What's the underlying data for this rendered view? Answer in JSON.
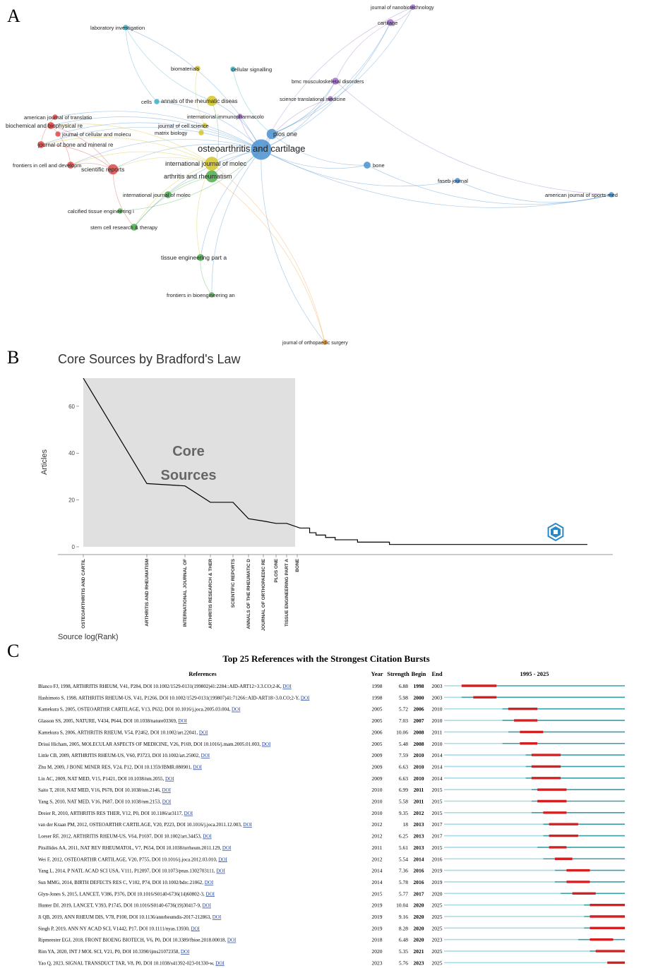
{
  "panel_labels": [
    "A",
    "B",
    "C"
  ],
  "chart_data": [
    {
      "type": "network",
      "panel": "A",
      "description": "Co-citation network of journals",
      "colors": {
        "red": "#e04848",
        "blue": "#4a90d0",
        "green": "#4cae4c",
        "yellow": "#d4c428",
        "purple": "#a070c8",
        "cyan": "#38b0c8",
        "orange": "#f0a040"
      },
      "nodes": [
        {
          "id": "osteoarthritis and cartilage",
          "cluster": "blue",
          "weight": 10
        },
        {
          "id": "international journal of molec",
          "cluster": "yellow",
          "weight": 6
        },
        {
          "id": "arthritis and rheumatism",
          "cluster": "green",
          "weight": 5
        },
        {
          "id": "plos one",
          "cluster": "blue",
          "weight": 4
        },
        {
          "id": "annals of the rheumatic diseas",
          "cluster": "yellow",
          "weight": 4
        },
        {
          "id": "scientific reports",
          "cluster": "red",
          "weight": 4
        },
        {
          "id": "journal of nanobiotechnology",
          "cluster": "purple",
          "weight": 1
        },
        {
          "id": "cartilage",
          "cluster": "purple",
          "weight": 2
        },
        {
          "id": "laboratory investigation",
          "cluster": "cyan",
          "weight": 1
        },
        {
          "id": "biomaterials",
          "cluster": "yellow",
          "weight": 1
        },
        {
          "id": "cellular signalling",
          "cluster": "cyan",
          "weight": 1
        },
        {
          "id": "bmc musculoskeletal disorders",
          "cluster": "purple",
          "weight": 2
        },
        {
          "id": "science translational medicine",
          "cluster": "purple",
          "weight": 1
        },
        {
          "id": "cells",
          "cluster": "cyan",
          "weight": 1
        },
        {
          "id": "international immunopharmacolo",
          "cluster": "purple",
          "weight": 1
        },
        {
          "id": "american journal of translatio",
          "cluster": "red",
          "weight": 1
        },
        {
          "id": "biochemical and biophysical re",
          "cluster": "red",
          "weight": 2
        },
        {
          "id": "journal of cellular and molecu",
          "cluster": "red",
          "weight": 1
        },
        {
          "id": "journal of cell science",
          "cluster": "yellow",
          "weight": 1
        },
        {
          "id": "matrix biology",
          "cluster": "yellow",
          "weight": 1
        },
        {
          "id": "journal of bone and mineral re",
          "cluster": "red",
          "weight": 2
        },
        {
          "id": "frontiers in cell and developm",
          "cluster": "red",
          "weight": 2
        },
        {
          "id": "bone",
          "cluster": "blue",
          "weight": 2
        },
        {
          "id": "faseb journal",
          "cluster": "blue",
          "weight": 1
        },
        {
          "id": "american journal of sports med",
          "cluster": "blue",
          "weight": 1
        },
        {
          "id": "international journal of molec",
          "cluster": "green",
          "weight": 2
        },
        {
          "id": "calcified tissue engineering i",
          "cluster": "green",
          "weight": 1
        },
        {
          "id": "stem cell research & therapy",
          "cluster": "green",
          "weight": 2
        },
        {
          "id": "tissue engineering part a",
          "cluster": "green",
          "weight": 2
        },
        {
          "id": "frontiers in bioengineering an",
          "cluster": "green",
          "weight": 1
        },
        {
          "id": "journal of orthopaedic surgery",
          "cluster": "orange",
          "weight": 1
        }
      ]
    },
    {
      "type": "line",
      "panel": "B",
      "title": "Core Sources by Bradford's Law",
      "ylabel": "Articles",
      "xlabel": "Source log(Rank)",
      "ylim": [
        0,
        72
      ],
      "yticks": [
        0,
        20,
        40,
        60
      ],
      "core_label_line1": "Core",
      "core_label_line2": "Sources",
      "colors": {
        "core_area": "#e0e0e0",
        "line": "#000000",
        "tick": "#444444"
      },
      "x_labels": [
        "OSTEOARTHRITIS AND CARTIL",
        "ARTHRITIS AND RHEUMATISM",
        "INTERNATIONAL JOURNAL OF",
        "ARTHRITIS RESEARCH & THER",
        "SCIENTIFIC REPORTS",
        "ANNALS OF THE RHEUMATIC D",
        "JOURNAL OF ORTHOPAEDIC RE",
        "PLOS ONE",
        "TISSUE ENGINEERING PART A",
        "BONE"
      ],
      "rank": [
        1,
        2,
        3,
        4,
        5,
        6,
        7,
        8,
        9,
        10,
        11,
        12,
        13,
        14,
        15,
        16,
        17,
        18,
        19,
        20,
        21,
        22,
        23,
        24,
        25,
        26,
        27,
        28,
        29,
        30,
        31,
        32,
        33,
        34,
        35,
        36,
        37,
        38,
        39,
        40,
        41,
        42,
        43,
        44,
        45,
        46,
        47,
        48,
        49,
        50,
        51,
        52,
        53,
        54,
        55,
        56,
        57,
        58,
        59,
        60,
        61,
        62,
        63,
        64,
        65,
        66,
        67,
        68,
        69,
        70,
        71,
        72,
        73,
        74,
        75,
        76,
        77,
        78,
        79,
        80,
        81,
        82,
        83,
        84,
        85,
        86,
        87,
        88,
        89,
        90,
        91,
        92,
        93,
        94,
        95,
        96,
        97,
        98,
        99,
        100
      ],
      "values": [
        72,
        27,
        26,
        19,
        19,
        12,
        11,
        10,
        10,
        8,
        8,
        8,
        6,
        6,
        5,
        5,
        5,
        4,
        4,
        4,
        3,
        3,
        3,
        3,
        3,
        3,
        3,
        2,
        2,
        2,
        2,
        2,
        2,
        2,
        2,
        2,
        2,
        1,
        1,
        1,
        1,
        1,
        1,
        1,
        1,
        1,
        1,
        1,
        1,
        1,
        1,
        1,
        1,
        1,
        1,
        1,
        1,
        1,
        1,
        1,
        1,
        1,
        1,
        1,
        1,
        1,
        1,
        1,
        1,
        1,
        1,
        1,
        1,
        1,
        1,
        1,
        1,
        1,
        1,
        1,
        1,
        1,
        1,
        1,
        1,
        1,
        1,
        1,
        1,
        1,
        1,
        1,
        1,
        1,
        1,
        1,
        1,
        1,
        1,
        1
      ],
      "core_zone_ranks": [
        1,
        10
      ]
    },
    {
      "type": "table",
      "panel": "C",
      "title": "Top 25 References with the Strongest Citation Bursts",
      "columns": [
        "References",
        "Year",
        "Strength",
        "Begin",
        "End"
      ],
      "period_label": "1995 - 2025",
      "period": [
        1995,
        2025
      ],
      "doi_label": "DOI",
      "colors": {
        "burst": "#d42020",
        "active": "#3a9ea8",
        "inactive": "#a8dce4",
        "link": "#1a3e9c"
      },
      "rows": [
        {
          "ref": "Blanco FJ, 1998, ARTHRITIS RHEUM, V41, P284, DOI 10.1002/1529-0131(199802)41:2284::AID-ART12>3.3.CO;2-K,",
          "year": 1998,
          "strength": "6.88",
          "begin": 1998,
          "end": 2003
        },
        {
          "ref": "Hashimoto S, 1998, ARTHRITIS RHEUM-US, V41, P1266, DOI 10.1002/1529-0131(199807)41:71266::AID-ART18>3.0.CO;2-Y,",
          "year": 1998,
          "strength": "5.98",
          "begin": 2000,
          "end": 2003
        },
        {
          "ref": "Kamekura S, 2005, OSTEOARTHR CARTILAGE, V13, P632, DOI 10.1016/j.joca.2005.03.004,",
          "year": 2005,
          "strength": "5.72",
          "begin": 2006,
          "end": 2010
        },
        {
          "ref": "Glasson SS, 2005, NATURE, V434, P644, DOI 10.1038/nature03369,",
          "year": 2005,
          "strength": "7.03",
          "begin": 2007,
          "end": 2010
        },
        {
          "ref": "Kamekura S, 2006, ARTHRITIS RHEUM, V54, P2462, DOI 10.1002/art.22041,",
          "year": 2006,
          "strength": "10.06",
          "begin": 2008,
          "end": 2011
        },
        {
          "ref": "Drissi Hicham, 2005, MOLECULAR ASPECTS OF MEDICINE, V26, P169, DOI 10.1016/j.mam.2005.01.003,",
          "year": 2005,
          "strength": "5.48",
          "begin": 2008,
          "end": 2010
        },
        {
          "ref": "Little CB, 2009, ARTHRITIS RHEUM-US, V60, P3723, DOI 10.1002/art.25002,",
          "year": 2009,
          "strength": "7.59",
          "begin": 2010,
          "end": 2014
        },
        {
          "ref": "Zhu M, 2009, J BONE MINER RES, V24, P12, DOI 10.1359/JBMR.080901,",
          "year": 2009,
          "strength": "6.63",
          "begin": 2010,
          "end": 2014
        },
        {
          "ref": "Lin AC, 2009, NAT MED, V15, P1421, DOI 10.1038/nm.2055,",
          "year": 2009,
          "strength": "6.63",
          "begin": 2010,
          "end": 2014
        },
        {
          "ref": "Saito T, 2010, NAT MED, V16, P678, DOI 10.1038/nm.2146,",
          "year": 2010,
          "strength": "6.99",
          "begin": 2011,
          "end": 2015
        },
        {
          "ref": "Yang S, 2010, NAT MED, V16, P687, DOI 10.1038/nm.2153,",
          "year": 2010,
          "strength": "5.58",
          "begin": 2011,
          "end": 2015
        },
        {
          "ref": "Dreier R, 2010, ARTHRITIS RES THER, V12, P0, DOI 10.1186/ar3117,",
          "year": 2010,
          "strength": "9.35",
          "begin": 2012,
          "end": 2015
        },
        {
          "ref": "van der Kraan PM, 2012, OSTEOARTHR CARTILAGE, V20, P223, DOI 10.1016/j.joca.2011.12.003,",
          "year": 2012,
          "strength": "18",
          "begin": 2013,
          "end": 2017
        },
        {
          "ref": "Loeser RF, 2012, ARTHRITIS RHEUM-US, V64, P1697, DOI 10.1002/art.34453,",
          "year": 2012,
          "strength": "6.25",
          "begin": 2013,
          "end": 2017
        },
        {
          "ref": "Pitsillides AA, 2011, NAT REV RHEUMATOL, V7, P654, DOI 10.1038/nrrheum.2011.129,",
          "year": 2011,
          "strength": "5.61",
          "begin": 2013,
          "end": 2015
        },
        {
          "ref": "Wei F, 2012, OSTEOARTHR CARTILAGE, V20, P755, DOI 10.1016/j.joca.2012.03.010,",
          "year": 2012,
          "strength": "5.54",
          "begin": 2014,
          "end": 2016
        },
        {
          "ref": "Yang L, 2014, P NATL ACAD SCI USA, V111, P12097, DOI 10.1073/pnas.1302703111,",
          "year": 2014,
          "strength": "7.36",
          "begin": 2016,
          "end": 2019
        },
        {
          "ref": "Sun MMG, 2014, BIRTH DEFECTS RES C, V102, P74, DOI 10.1002/bdrc.21062,",
          "year": 2014,
          "strength": "5.78",
          "begin": 2016,
          "end": 2019
        },
        {
          "ref": "Glyn-Jones S, 2015, LANCET, V386, P376, DOI 10.1016/S0140-6736(14)60802-3,",
          "year": 2015,
          "strength": "5.77",
          "begin": 2017,
          "end": 2020
        },
        {
          "ref": "Hunter DJ, 2019, LANCET, V393, P1745, DOI 10.1016/S0140-6736(19)30417-9,",
          "year": 2019,
          "strength": "10.04",
          "begin": 2020,
          "end": 2025
        },
        {
          "ref": "Ji QB, 2019, ANN RHEUM DIS, V78, P100, DOI 10.1136/annrheumdis-2017-212863,",
          "year": 2019,
          "strength": "9.16",
          "begin": 2020,
          "end": 2025
        },
        {
          "ref": "Singh P, 2019, ANN NY ACAD SCI, V1442, P17, DOI 10.1111/nyas.13930,",
          "year": 2019,
          "strength": "8.28",
          "begin": 2020,
          "end": 2025
        },
        {
          "ref": "Ripmeester EGJ, 2018, FRONT BIOENG BIOTECH, V6, P0, DOI 10.3389/fbioe.2018.00018,",
          "year": 2018,
          "strength": "6.48",
          "begin": 2020,
          "end": 2023
        },
        {
          "ref": "Rim YA, 2020, INT J MOL SCI, V21, P0, DOI 10.3390/ijms21072358,",
          "year": 2020,
          "strength": "5.35",
          "begin": 2021,
          "end": 2025
        },
        {
          "ref": "Yao Q, 2023, SIGNAL TRANSDUCT TAR, V8, P0, DOI 10.1038/s41392-023-01330-w,",
          "year": 2023,
          "strength": "5.76",
          "begin": 2023,
          "end": 2025
        }
      ]
    }
  ]
}
